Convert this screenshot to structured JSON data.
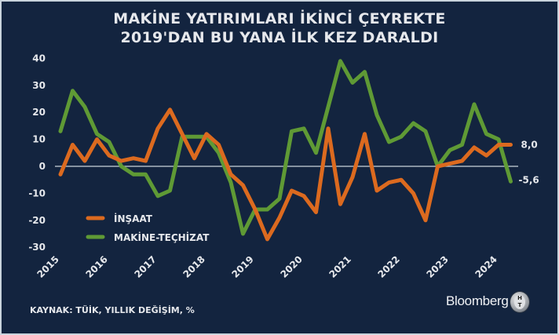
{
  "header": {
    "title_line1": "MAKİNE YATIRIMLARI İKİNCİ ÇEYREKTE",
    "title_line2": "2019'DAN BU YANA İLK KEZ DARALDI"
  },
  "footer": {
    "source": "KAYNAK: TÜİK, YILLIK DEĞİŞİM, %",
    "brand": "Bloomberg",
    "logo_text_top": "H",
    "logo_text_bottom": "T"
  },
  "colors": {
    "background": "#13243f",
    "insaat": "#dc6a1f",
    "makine": "#5f9a35",
    "zero_line": "#c9d3dc",
    "text": "#e6e8ec"
  },
  "chart_data": {
    "type": "line",
    "title": "MAKİNE YATIRIMLARI İKİNCİ ÇEYREKTE 2019'DAN BU YANA İLK KEZ DARALDI",
    "xlabel": "",
    "ylabel": "",
    "ylim": [
      -30,
      40
    ],
    "yticks": [
      "40",
      "30",
      "20",
      "10",
      "0",
      "-10",
      "-20",
      "-30"
    ],
    "x_tick_labels": [
      "2015",
      "2016",
      "2017",
      "2018",
      "2019",
      "2020",
      "2021",
      "2022",
      "2023",
      "2024"
    ],
    "frequency": "quarterly",
    "x": [
      "2015Q1",
      "2015Q2",
      "2015Q3",
      "2015Q4",
      "2016Q1",
      "2016Q2",
      "2016Q3",
      "2016Q4",
      "2017Q1",
      "2017Q2",
      "2017Q3",
      "2017Q4",
      "2018Q1",
      "2018Q2",
      "2018Q3",
      "2018Q4",
      "2019Q1",
      "2019Q2",
      "2019Q3",
      "2019Q4",
      "2020Q1",
      "2020Q2",
      "2020Q3",
      "2020Q4",
      "2021Q1",
      "2021Q2",
      "2021Q3",
      "2021Q4",
      "2022Q1",
      "2022Q2",
      "2022Q3",
      "2022Q4",
      "2023Q1",
      "2023Q2",
      "2023Q3",
      "2023Q4",
      "2024Q1",
      "2024Q2"
    ],
    "series": [
      {
        "name": "İNŞAAT",
        "color": "#dc6a1f",
        "values": [
          -3,
          8,
          2,
          10,
          4,
          2,
          3,
          2,
          14,
          21,
          12,
          3,
          12,
          8,
          -3,
          -7,
          -16,
          -27,
          -19,
          -9,
          -11,
          -17,
          14,
          -14,
          -4,
          12,
          -9,
          -6,
          -5,
          -10,
          -20,
          0,
          1,
          2,
          7,
          4,
          8,
          8.0
        ]
      },
      {
        "name": "MAKİNE-TEÇHİZAT",
        "color": "#5f9a35",
        "values": [
          13,
          28,
          22,
          12,
          9,
          0,
          -3,
          -3,
          -11,
          -9,
          11,
          11,
          11,
          5,
          -6,
          -25,
          -16,
          -16,
          -12,
          13,
          14,
          5,
          22,
          39,
          31,
          35,
          19,
          9,
          11,
          16,
          13,
          0,
          6,
          8,
          23,
          12,
          10,
          -5.6
        ]
      }
    ],
    "end_labels": {
      "insaat": "8,0",
      "makine": "-5,6"
    },
    "legend": [
      {
        "label": "İNŞAAT",
        "color": "#dc6a1f"
      },
      {
        "label": "MAKİNE-TEÇHİZAT",
        "color": "#5f9a35"
      }
    ],
    "legend_position": "lower-left inside plot",
    "grid": false,
    "zero_line": true
  }
}
